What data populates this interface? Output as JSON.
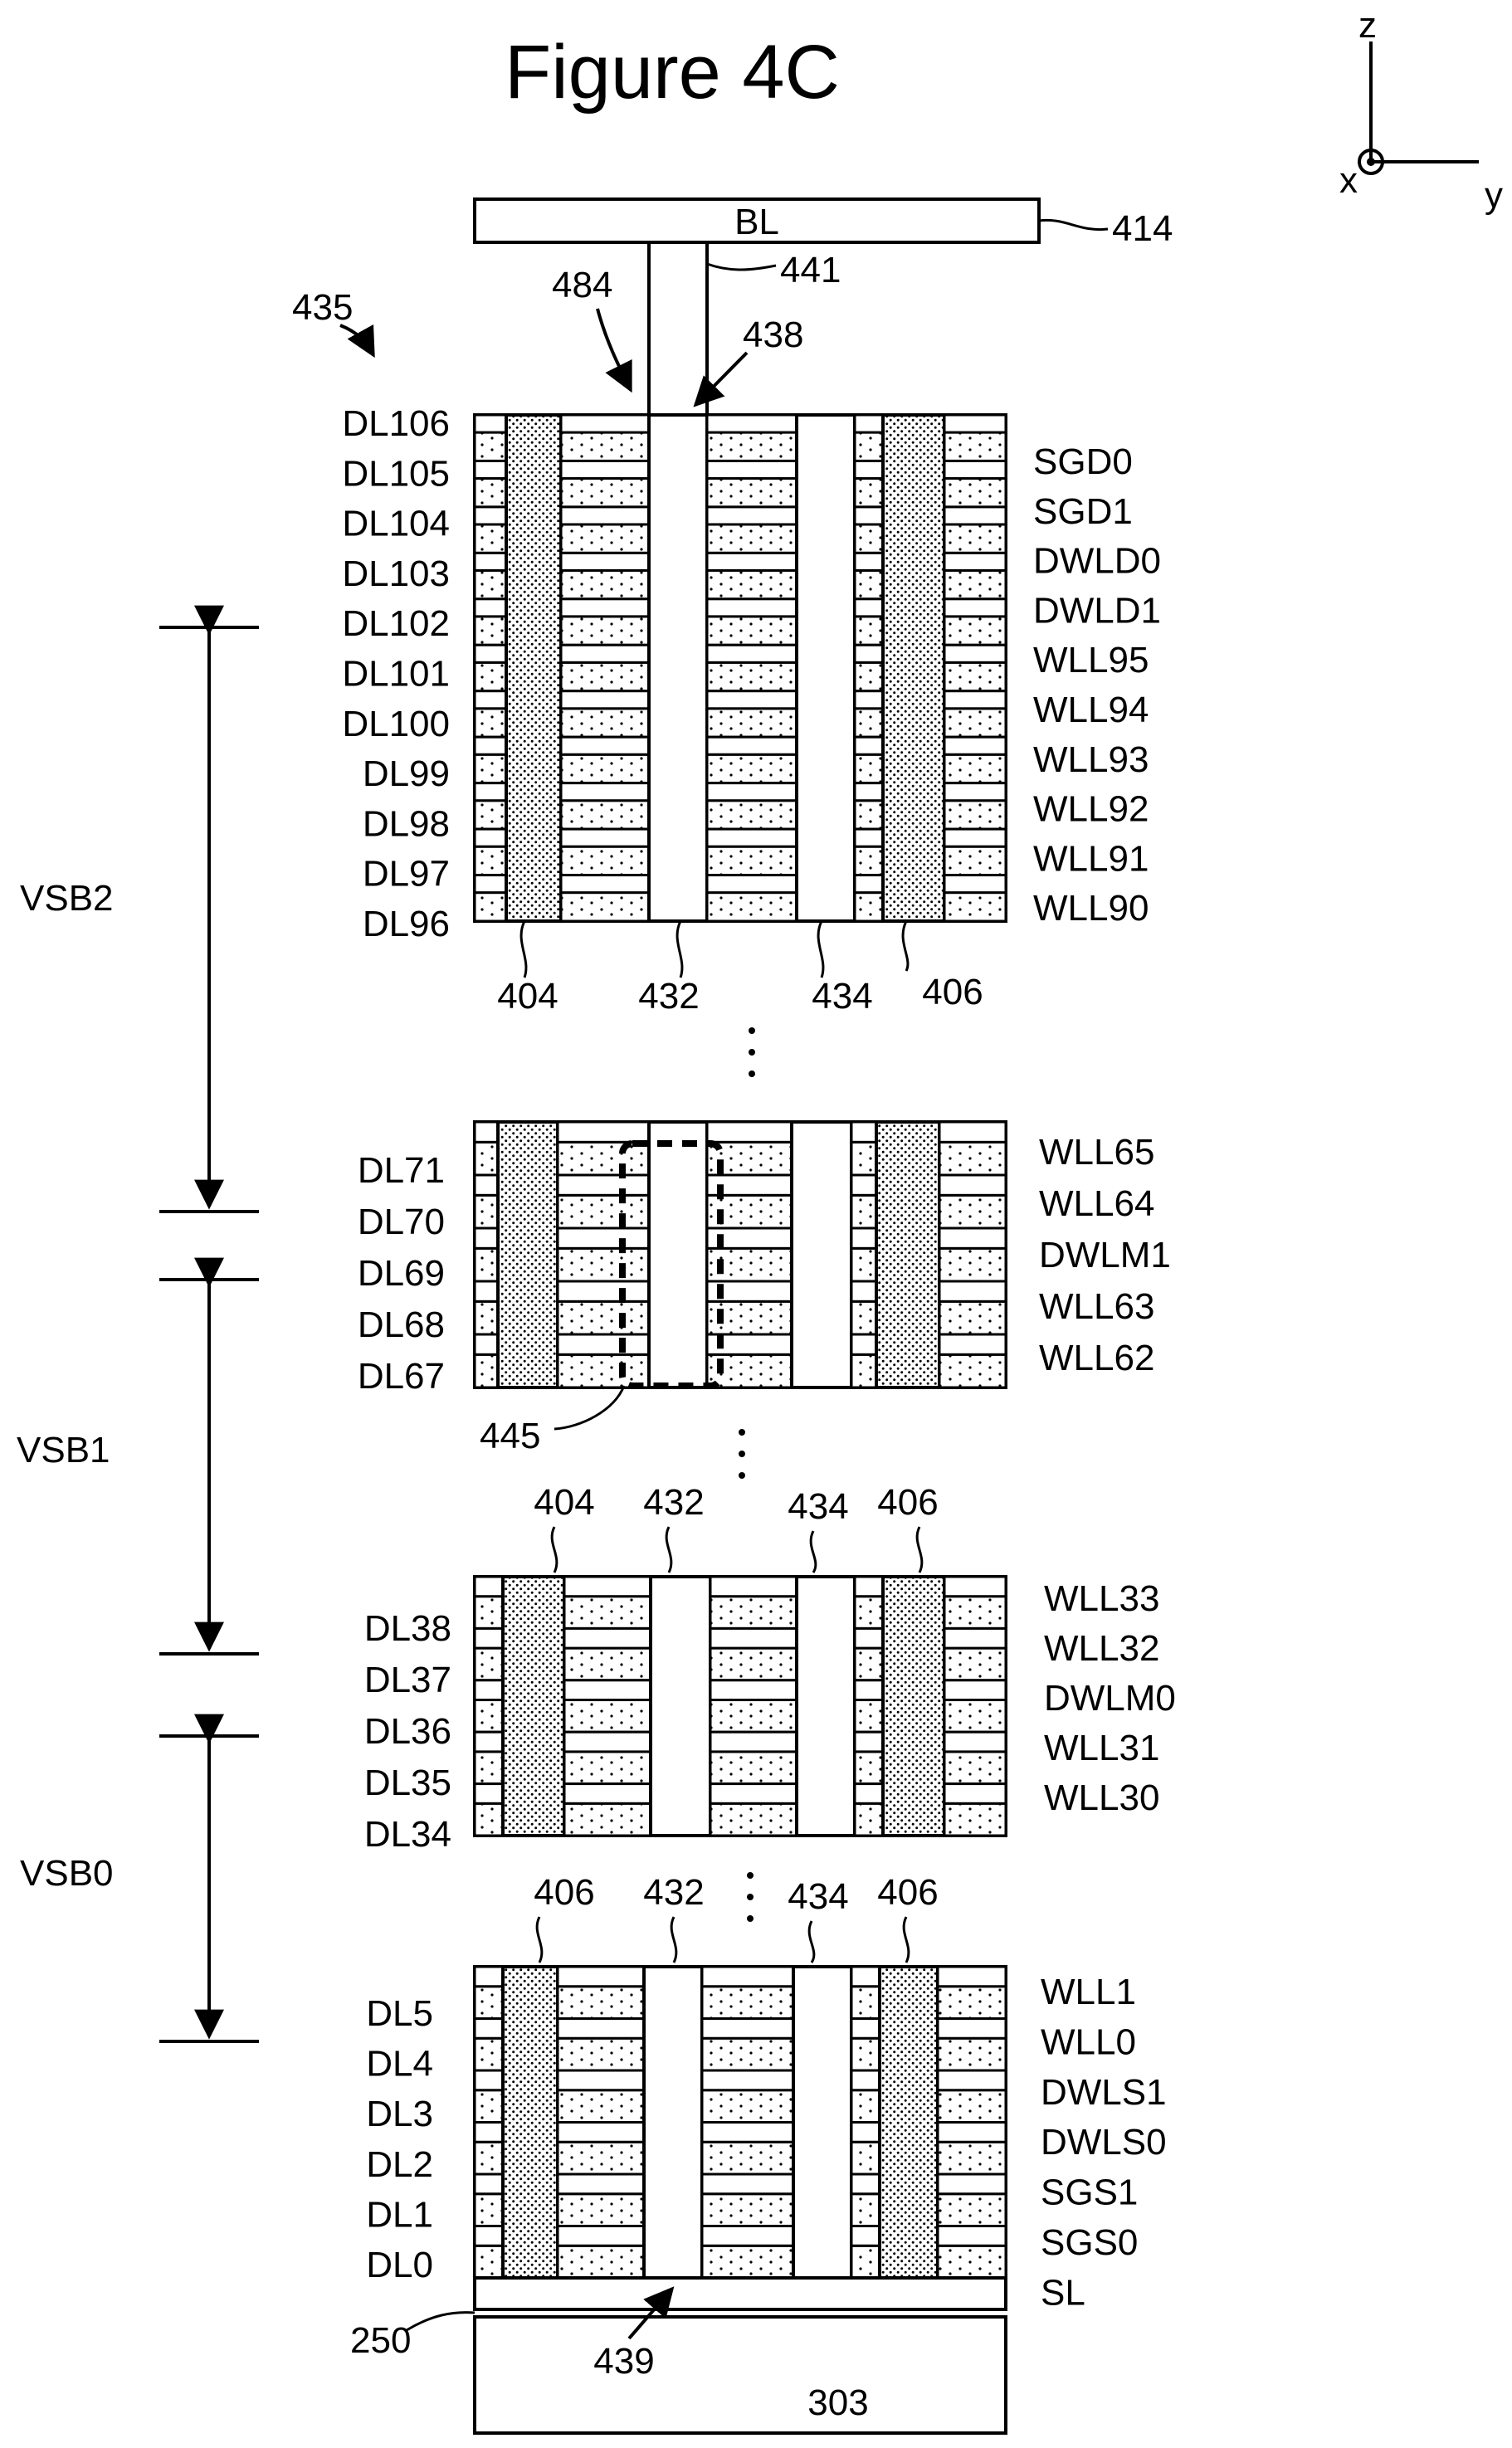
{
  "title": "Figure 4C",
  "axes": {
    "z": "z",
    "x": "x",
    "y": "y"
  },
  "top": {
    "bitline_label": "BL",
    "bitline_ref": "414",
    "contact_ref": "441",
    "ref_484": "484",
    "ref_438": "438",
    "ref_435": "435"
  },
  "blocks": [
    {
      "dl_labels": [
        "DL106",
        "DL105",
        "DL104",
        "DL103",
        "DL102",
        "DL101",
        "DL100",
        "DL99",
        "DL98",
        "DL97",
        "DL96"
      ],
      "wl_labels": [
        "SGD0",
        "SGD1",
        "DWLD0",
        "DWLD1",
        "WLL95",
        "WLL94",
        "WLL93",
        "WLL92",
        "WLL91",
        "WLL90"
      ],
      "refs": [
        "404",
        "432",
        "434",
        "406"
      ]
    },
    {
      "dl_labels": [
        "DL71",
        "DL70",
        "DL69",
        "DL68",
        "DL67"
      ],
      "wl_labels": [
        "WLL65",
        "WLL64",
        "DWLM1",
        "WLL63",
        "WLL62"
      ],
      "refs": [
        "445"
      ]
    },
    {
      "dl_labels": [
        "DL38",
        "DL37",
        "DL36",
        "DL35",
        "DL34"
      ],
      "wl_labels": [
        "WLL33",
        "WLL32",
        "DWLM0",
        "WLL31",
        "WLL30"
      ],
      "refs": [
        "404",
        "432",
        "434",
        "406"
      ]
    },
    {
      "dl_labels": [
        "DL5",
        "DL4",
        "DL3",
        "DL2",
        "DL1",
        "DL0"
      ],
      "wl_labels": [
        "WLL1",
        "WLL0",
        "DWLS1",
        "DWLS0",
        "SGS1",
        "SGS0",
        "SL"
      ],
      "refs": [
        "406",
        "432",
        "434",
        "406"
      ]
    }
  ],
  "subblocks": [
    "VSB2",
    "VSB1",
    "VSB0"
  ],
  "bottom": {
    "ref_250": "250",
    "ref_439": "439",
    "substrate": "303"
  },
  "colors": {
    "stroke": "#000000",
    "fill": "#ffffff",
    "dots": "#000000"
  }
}
